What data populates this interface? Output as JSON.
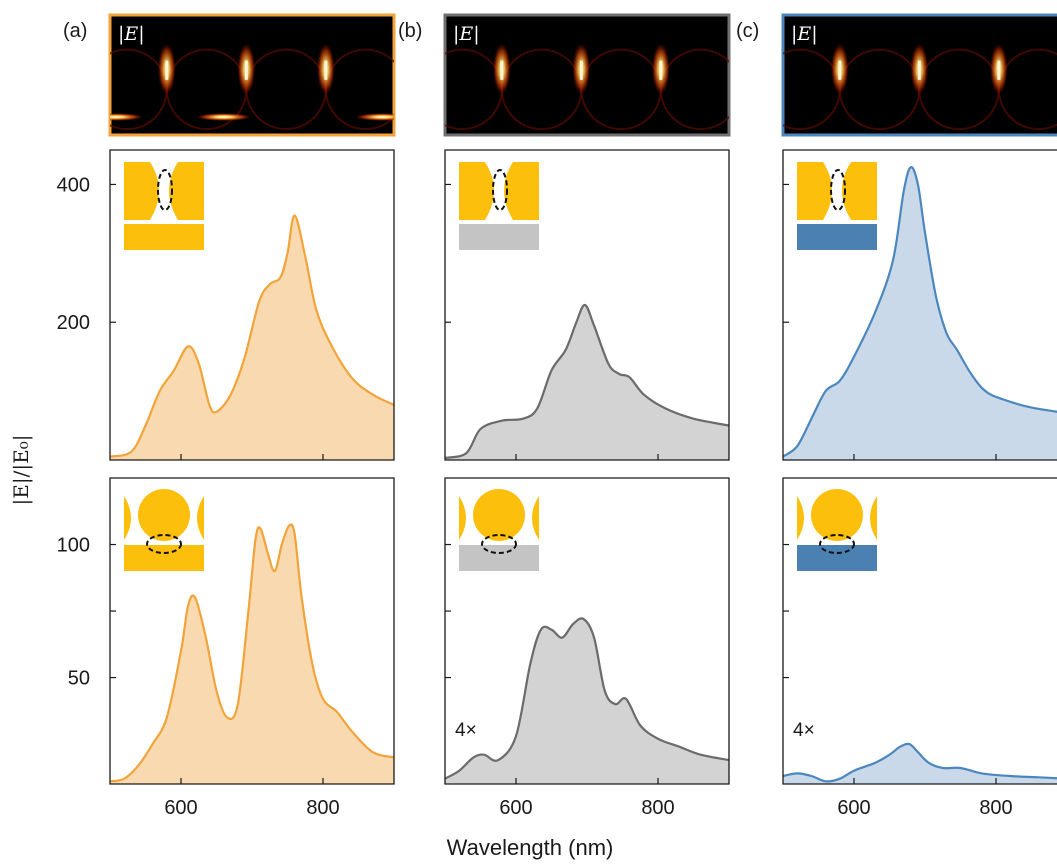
{
  "figure": {
    "xlabel": "Wavelength (nm)",
    "ylabel": "|E|/|E₀|",
    "x_ticks": [
      600,
      800
    ],
    "colors": {
      "gold": "#f2a33a",
      "gold_fill": "#f9d9b0",
      "gold_particle": "#fbbf0c",
      "gray": "#6b6b6b",
      "gray_fill": "#d3d3d3",
      "gray_substrate": "#c4c4c4",
      "blue": "#4b87bd",
      "blue_fill": "#c9d9ea",
      "blue_substrate": "#4a81b2"
    }
  },
  "panels": [
    {
      "label": "(a)",
      "map_label": "|E|",
      "border_color": "#f2a33a",
      "substrate": "gold"
    },
    {
      "label": "(b)",
      "map_label": "|E|",
      "border_color": "#707070",
      "substrate": "gray"
    },
    {
      "label": "(c)",
      "map_label": "|E|",
      "border_color": "#4b87bd",
      "substrate": "blue"
    }
  ],
  "chart_data": [
    {
      "type": "area",
      "panel": "(a)",
      "row": "top",
      "geometry": "truncated-particle dimer",
      "xlim": [
        500,
        900
      ],
      "ylim": [
        0,
        450
      ],
      "y_ticks": [
        200,
        400
      ],
      "y_tick_labels": [
        "200",
        "400"
      ],
      "series": [
        {
          "points": [
            [
              500,
              5
            ],
            [
              530,
              12
            ],
            [
              550,
              50
            ],
            [
              570,
              100
            ],
            [
              590,
              130
            ],
            [
              610,
              165
            ],
            [
              625,
              140
            ],
            [
              640,
              80
            ],
            [
              650,
              70
            ],
            [
              670,
              95
            ],
            [
              690,
              150
            ],
            [
              710,
              230
            ],
            [
              725,
              255
            ],
            [
              740,
              265
            ],
            [
              750,
              300
            ],
            [
              760,
              355
            ],
            [
              775,
              295
            ],
            [
              790,
              220
            ],
            [
              810,
              170
            ],
            [
              840,
              120
            ],
            [
              870,
              95
            ],
            [
              900,
              80
            ]
          ]
        }
      ]
    },
    {
      "type": "area",
      "panel": "(b)",
      "row": "top",
      "geometry": "truncated-particle dimer",
      "xlim": [
        500,
        900
      ],
      "ylim": [
        0,
        450
      ],
      "y_ticks": [
        200,
        400
      ],
      "y_tick_labels": [
        "",
        ""
      ],
      "series": [
        {
          "points": [
            [
              500,
              3
            ],
            [
              530,
              10
            ],
            [
              550,
              45
            ],
            [
              580,
              57
            ],
            [
              610,
              60
            ],
            [
              630,
              75
            ],
            [
              650,
              130
            ],
            [
              670,
              160
            ],
            [
              685,
              200
            ],
            [
              697,
              225
            ],
            [
              710,
              195
            ],
            [
              730,
              140
            ],
            [
              745,
              125
            ],
            [
              760,
              120
            ],
            [
              780,
              95
            ],
            [
              810,
              75
            ],
            [
              850,
              60
            ],
            [
              900,
              50
            ]
          ]
        }
      ]
    },
    {
      "type": "area",
      "panel": "(c)",
      "row": "top",
      "geometry": "truncated-particle dimer",
      "xlim": [
        500,
        900
      ],
      "ylim": [
        0,
        450
      ],
      "y_ticks": [
        200,
        400
      ],
      "y_tick_labels": [
        "",
        ""
      ],
      "series": [
        {
          "points": [
            [
              500,
              5
            ],
            [
              520,
              20
            ],
            [
              540,
              60
            ],
            [
              560,
              100
            ],
            [
              580,
              115
            ],
            [
              600,
              150
            ],
            [
              630,
              215
            ],
            [
              655,
              290
            ],
            [
              670,
              390
            ],
            [
              680,
              425
            ],
            [
              690,
              400
            ],
            [
              700,
              330
            ],
            [
              715,
              240
            ],
            [
              730,
              185
            ],
            [
              745,
              160
            ],
            [
              765,
              125
            ],
            [
              785,
              100
            ],
            [
              810,
              88
            ],
            [
              850,
              76
            ],
            [
              900,
              68
            ]
          ]
        }
      ]
    },
    {
      "type": "area",
      "panel": "(a)",
      "row": "bottom",
      "geometry": "sphere on substrate",
      "xlim": [
        500,
        900
      ],
      "ylim": [
        10,
        125
      ],
      "y_ticks": [
        50,
        75,
        100
      ],
      "y_tick_labels": [
        "50",
        "",
        "100"
      ],
      "series": [
        {
          "points": [
            [
              500,
              11
            ],
            [
              520,
              12
            ],
            [
              540,
              17
            ],
            [
              560,
              25
            ],
            [
              580,
              35
            ],
            [
              600,
              60
            ],
            [
              610,
              77
            ],
            [
              620,
              80
            ],
            [
              635,
              65
            ],
            [
              650,
              45
            ],
            [
              665,
              35
            ],
            [
              680,
              40
            ],
            [
              695,
              75
            ],
            [
              705,
              102
            ],
            [
              712,
              106
            ],
            [
              722,
              97
            ],
            [
              732,
              90
            ],
            [
              742,
              100
            ],
            [
              752,
              107
            ],
            [
              760,
              104
            ],
            [
              770,
              80
            ],
            [
              785,
              55
            ],
            [
              800,
              42
            ],
            [
              820,
              37
            ],
            [
              840,
              30
            ],
            [
              870,
              22
            ],
            [
              900,
              20
            ]
          ]
        }
      ]
    },
    {
      "type": "area",
      "panel": "(b)",
      "row": "bottom",
      "geometry": "sphere on substrate",
      "xlim": [
        500,
        900
      ],
      "ylim": [
        10,
        125
      ],
      "y_ticks": [
        50,
        75,
        100
      ],
      "y_tick_labels": [
        "",
        "",
        ""
      ],
      "annotation": "4×",
      "series": [
        {
          "points": [
            [
              500,
              12
            ],
            [
              520,
              15
            ],
            [
              540,
              20
            ],
            [
              555,
              21
            ],
            [
              575,
              19
            ],
            [
              600,
              28
            ],
            [
              620,
              55
            ],
            [
              635,
              68
            ],
            [
              650,
              68
            ],
            [
              665,
              65
            ],
            [
              680,
              70
            ],
            [
              695,
              72
            ],
            [
              710,
              65
            ],
            [
              725,
              45
            ],
            [
              740,
              40
            ],
            [
              755,
              42
            ],
            [
              775,
              32
            ],
            [
              800,
              27
            ],
            [
              830,
              24
            ],
            [
              860,
              21
            ],
            [
              900,
              19
            ]
          ]
        }
      ]
    },
    {
      "type": "area",
      "panel": "(c)",
      "row": "bottom",
      "geometry": "sphere on substrate",
      "xlim": [
        500,
        900
      ],
      "ylim": [
        10,
        125
      ],
      "y_ticks": [
        50,
        75,
        100
      ],
      "y_tick_labels": [
        "",
        "",
        ""
      ],
      "annotation": "4×",
      "series": [
        {
          "points": [
            [
              500,
              13
            ],
            [
              520,
              14
            ],
            [
              540,
              13
            ],
            [
              560,
              11
            ],
            [
              580,
              12
            ],
            [
              600,
              15
            ],
            [
              630,
              18
            ],
            [
              650,
              21
            ],
            [
              665,
              24
            ],
            [
              678,
              25
            ],
            [
              690,
              22
            ],
            [
              705,
              18
            ],
            [
              725,
              16
            ],
            [
              750,
              16
            ],
            [
              780,
              14
            ],
            [
              820,
              13
            ],
            [
              860,
              12.5
            ],
            [
              900,
              12
            ]
          ]
        }
      ]
    }
  ]
}
